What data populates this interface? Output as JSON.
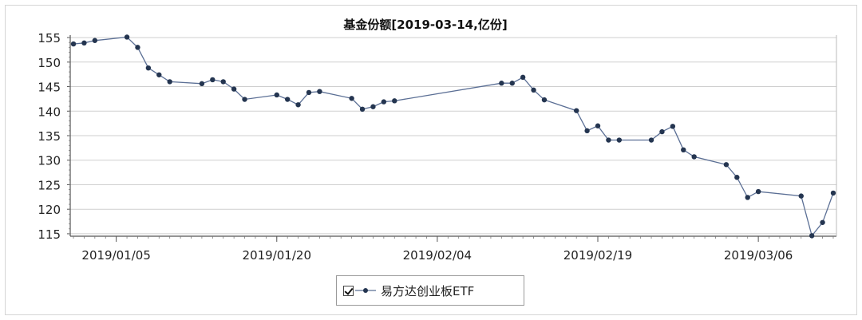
{
  "chart_data": {
    "type": "line",
    "title": "基金份额[2019-03-14,亿份]",
    "xlabel": "",
    "ylabel": "",
    "ylim": [
      114.5,
      155.5
    ],
    "y_ticks": [
      115,
      120,
      125,
      130,
      135,
      140,
      145,
      150,
      155
    ],
    "x_tick_labels": [
      "2019/01/05",
      "2019/01/20",
      "2019/02/04",
      "2019/02/19",
      "2019/03/06"
    ],
    "x_tick_days": [
      4,
      19,
      34,
      49,
      64
    ],
    "x_range_days": [
      -0.3,
      71.3
    ],
    "grid": true,
    "legend_position": "bottom-center",
    "series": [
      {
        "name": "易方达创业板ETF",
        "color": "#5b6f95",
        "marker_color": "#243550",
        "x_days": [
          0,
          1,
          2,
          5,
          6,
          7,
          8,
          9,
          12,
          13,
          14,
          15,
          16,
          19,
          20,
          21,
          22,
          23,
          26,
          27,
          28,
          29,
          30,
          40,
          41,
          42,
          43,
          44,
          47,
          48,
          49,
          50,
          51,
          54,
          55,
          56,
          57,
          58,
          61,
          62,
          63,
          64,
          68,
          69,
          70,
          71
        ],
        "values": [
          153.7,
          153.9,
          154.4,
          155.1,
          153.0,
          148.8,
          147.4,
          146.0,
          145.6,
          146.4,
          146.0,
          144.5,
          142.4,
          143.3,
          142.4,
          141.3,
          143.8,
          144.0,
          142.6,
          140.4,
          140.9,
          141.9,
          142.1,
          145.7,
          145.7,
          146.9,
          144.3,
          142.3,
          140.1,
          136.0,
          137.0,
          134.1,
          134.1,
          134.1,
          135.8,
          136.9,
          132.1,
          130.7,
          129.1,
          126.5,
          122.4,
          123.6,
          122.7,
          114.6,
          117.3,
          123.3
        ]
      }
    ]
  },
  "legend": {
    "label": "易方达创业板ETF"
  }
}
